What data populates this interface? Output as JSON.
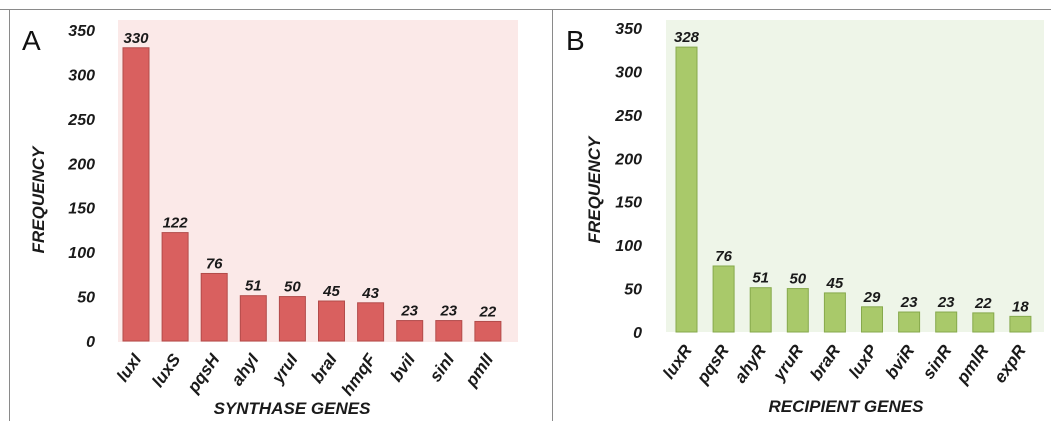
{
  "colors": {
    "panelA_bar": "#d9605f",
    "panelA_bar_edge": "#b24b4a",
    "panelA_bg": "#fbe9e8",
    "panelB_bar": "#a9c96a",
    "panelB_bar_edge": "#86a94c",
    "panelB_bg": "#eef5e8",
    "frame": "#8a8a8a"
  },
  "chart_data": [
    {
      "type": "bar",
      "panel_label": "A",
      "categories": [
        "luxI",
        "luxS",
        "pqsH",
        "ahyI",
        "yruI",
        "braI",
        "hmqF",
        "bviI",
        "sinI",
        "pmlI"
      ],
      "values": [
        330,
        122,
        76,
        51,
        50,
        45,
        43,
        23,
        23,
        22
      ],
      "data_labels": [
        "330",
        "122",
        "76",
        "51",
        "50",
        "45",
        "43",
        "23",
        "23",
        "22"
      ],
      "xlabel": "SYNTHASE GENES",
      "ylabel": "FREQUENCY",
      "ylim": [
        0,
        350
      ],
      "yticks": [
        "0",
        "50",
        "100",
        "150",
        "200",
        "250",
        "300",
        "350"
      ],
      "grid": false,
      "legend": "none"
    },
    {
      "type": "bar",
      "panel_label": "B",
      "categories": [
        "luxR",
        "pqsR",
        "ahyR",
        "yruR",
        "braR",
        "luxP",
        "bviR",
        "sinR",
        "pmlR",
        "expR"
      ],
      "values": [
        328,
        76,
        51,
        50,
        45,
        29,
        23,
        23,
        22,
        18
      ],
      "data_labels": [
        "328",
        "76",
        "51",
        "50",
        "45",
        "29",
        "23",
        "23",
        "22",
        "18"
      ],
      "xlabel": "RECIPIENT GENES",
      "ylabel": "FREQUENCY",
      "ylim": [
        0,
        350
      ],
      "yticks": [
        "0",
        "50",
        "100",
        "150",
        "200",
        "250",
        "300",
        "350"
      ],
      "grid": false,
      "legend": "none"
    }
  ]
}
